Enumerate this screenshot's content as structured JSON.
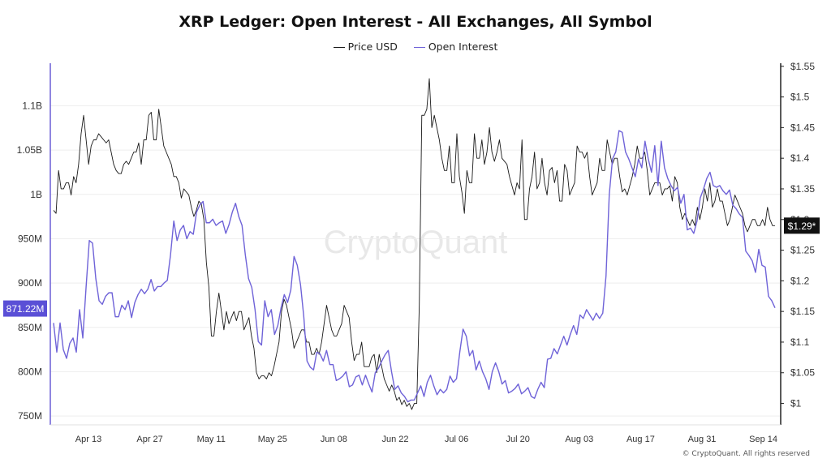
{
  "title": "XRP Ledger: Open Interest - All Exchanges, All Symbol",
  "watermark": "CryptoQuant",
  "copyright": "© CryptoQuant. All rights reserved",
  "colors": {
    "price": "#1a1a1a",
    "oi": "#6f63d8",
    "axis_left": "#6a5fd6",
    "grid": "#eeeeee"
  },
  "chart_data": {
    "type": "line",
    "x_tick_labels": [
      "Apr 13",
      "Apr 27",
      "May 11",
      "May 25",
      "Jun 08",
      "Jun 22",
      "Jul 06",
      "Jul 20",
      "Aug 03",
      "Aug 17",
      "Aug 31",
      "Sep 14"
    ],
    "left_axis": {
      "ticks": [
        "750M",
        "800M",
        "850M",
        "900M",
        "950M",
        "1B",
        "1.05B",
        "1.1B"
      ],
      "range": [
        740,
        1148
      ],
      "units": "M",
      "current_label": "871.22M",
      "current_value": 871.22
    },
    "right_axis": {
      "ticks": [
        "$1",
        "$1.05",
        "$1.1",
        "$1.15",
        "$1.2",
        "$1.25",
        "$1.3",
        "$1.35",
        "$1.4",
        "$1.45",
        "$1.5",
        "$1.55"
      ],
      "range": [
        0.965,
        1.555
      ],
      "current_label": "$1.29*",
      "current_value": 1.29
    },
    "series": [
      {
        "name": "Price USD",
        "axis": "right",
        "values": [
          1.315,
          1.31,
          1.38,
          1.35,
          1.35,
          1.36,
          1.36,
          1.34,
          1.37,
          1.36,
          1.39,
          1.44,
          1.47,
          1.43,
          1.39,
          1.42,
          1.43,
          1.43,
          1.44,
          1.435,
          1.43,
          1.425,
          1.43,
          1.41,
          1.39,
          1.38,
          1.375,
          1.375,
          1.39,
          1.395,
          1.39,
          1.4,
          1.41,
          1.41,
          1.425,
          1.39,
          1.43,
          1.43,
          1.47,
          1.475,
          1.43,
          1.43,
          1.48,
          1.45,
          1.42,
          1.41,
          1.4,
          1.39,
          1.37,
          1.37,
          1.36,
          1.335,
          1.35,
          1.345,
          1.34,
          1.32,
          1.305,
          1.315,
          1.33,
          1.325,
          1.3,
          1.23,
          1.19,
          1.11,
          1.11,
          1.15,
          1.18,
          1.15,
          1.12,
          1.15,
          1.13,
          1.14,
          1.15,
          1.135,
          1.15,
          1.15,
          1.12,
          1.13,
          1.14,
          1.11,
          1.09,
          1.05,
          1.04,
          1.045,
          1.045,
          1.04,
          1.05,
          1.045,
          1.06,
          1.08,
          1.1,
          1.15,
          1.17,
          1.16,
          1.14,
          1.12,
          1.09,
          1.1,
          1.11,
          1.12,
          1.12,
          1.1,
          1.1,
          1.08,
          1.08,
          1.09,
          1.08,
          1.1,
          1.13,
          1.16,
          1.14,
          1.12,
          1.11,
          1.11,
          1.12,
          1.13,
          1.16,
          1.15,
          1.14,
          1.1,
          1.07,
          1.08,
          1.08,
          1.1,
          1.06,
          1.06,
          1.06,
          1.075,
          1.08,
          1.05,
          1.08,
          1.06,
          1.04,
          1.03,
          1.02,
          1.03,
          1.02,
          1.005,
          1.01,
          0.998,
          1.005,
          0.995,
          1.0,
          0.99,
          1.0,
          1.0,
          1.16,
          1.47,
          1.47,
          1.48,
          1.53,
          1.45,
          1.47,
          1.45,
          1.43,
          1.4,
          1.38,
          1.38,
          1.42,
          1.36,
          1.36,
          1.44,
          1.37,
          1.345,
          1.31,
          1.38,
          1.36,
          1.36,
          1.44,
          1.4,
          1.4,
          1.43,
          1.39,
          1.41,
          1.45,
          1.41,
          1.395,
          1.41,
          1.43,
          1.4,
          1.395,
          1.39,
          1.37,
          1.355,
          1.34,
          1.36,
          1.35,
          1.43,
          1.3,
          1.3,
          1.35,
          1.37,
          1.41,
          1.35,
          1.36,
          1.4,
          1.36,
          1.34,
          1.38,
          1.385,
          1.36,
          1.38,
          1.33,
          1.33,
          1.39,
          1.38,
          1.34,
          1.35,
          1.36,
          1.42,
          1.41,
          1.41,
          1.4,
          1.41,
          1.37,
          1.34,
          1.35,
          1.36,
          1.4,
          1.38,
          1.38,
          1.43,
          1.41,
          1.39,
          1.4,
          1.4,
          1.37,
          1.345,
          1.35,
          1.34,
          1.355,
          1.37,
          1.39,
          1.42,
          1.4,
          1.4,
          1.41,
          1.38,
          1.34,
          1.35,
          1.36,
          1.36,
          1.36,
          1.34,
          1.35,
          1.35,
          1.355,
          1.33,
          1.37,
          1.36,
          1.32,
          1.3,
          1.31,
          1.3,
          1.29,
          1.3,
          1.29,
          1.32,
          1.3,
          1.32,
          1.35,
          1.33,
          1.36,
          1.32,
          1.33,
          1.35,
          1.33,
          1.33,
          1.31,
          1.29,
          1.3,
          1.32,
          1.34,
          1.33,
          1.32,
          1.31,
          1.29,
          1.28,
          1.29,
          1.3,
          1.3,
          1.29,
          1.29,
          1.3,
          1.29,
          1.32,
          1.3,
          1.29,
          1.29
        ]
      },
      {
        "name": "Open Interest",
        "axis": "left",
        "values": [
          855,
          822,
          855,
          825,
          815,
          832,
          838,
          822,
          870,
          838,
          895,
          948,
          945,
          905,
          880,
          876,
          885,
          889,
          889,
          862,
          862,
          875,
          870,
          880,
          861,
          878,
          887,
          893,
          888,
          893,
          904,
          891,
          896,
          896,
          900,
          903,
          932,
          970,
          948,
          960,
          965,
          950,
          958,
          955,
          980,
          988,
          992,
          968,
          968,
          972,
          965,
          968,
          970,
          956,
          966,
          980,
          990,
          975,
          965,
          932,
          905,
          895,
          870,
          834,
          830,
          880,
          862,
          870,
          842,
          852,
          872,
          887,
          878,
          892,
          930,
          920,
          898,
          862,
          812,
          805,
          802,
          822,
          820,
          812,
          824,
          808,
          808,
          790,
          792,
          795,
          800,
          783,
          785,
          794,
          796,
          785,
          796,
          786,
          777,
          799,
          804,
          812,
          819,
          824,
          800,
          780,
          784,
          776,
          772,
          766,
          768,
          768,
          776,
          784,
          772,
          788,
          796,
          784,
          774,
          780,
          776,
          780,
          795,
          788,
          792,
          822,
          848,
          840,
          818,
          824,
          802,
          812,
          800,
          792,
          780,
          800,
          810,
          800,
          786,
          790,
          776,
          778,
          781,
          786,
          775,
          778,
          782,
          772,
          770,
          780,
          788,
          782,
          814,
          815,
          826,
          820,
          830,
          840,
          830,
          842,
          852,
          842,
          864,
          860,
          870,
          864,
          858,
          866,
          860,
          866,
          908,
          1000,
          1040,
          1048,
          1072,
          1070,
          1048,
          1040,
          1030,
          1020,
          1040,
          1030,
          1060,
          1040,
          1025,
          1055,
          1010,
          1060,
          1030,
          1018,
          1010,
          1004,
          1008,
          990,
          1000,
          960,
          962,
          956,
          970,
          996,
          1006,
          1018,
          1025,
          1010,
          1008,
          1010,
          1004,
          1000,
          1005,
          988,
          984,
          978,
          974,
          936,
          931,
          925,
          912,
          938,
          920,
          918,
          885,
          880,
          872
        ]
      }
    ]
  }
}
